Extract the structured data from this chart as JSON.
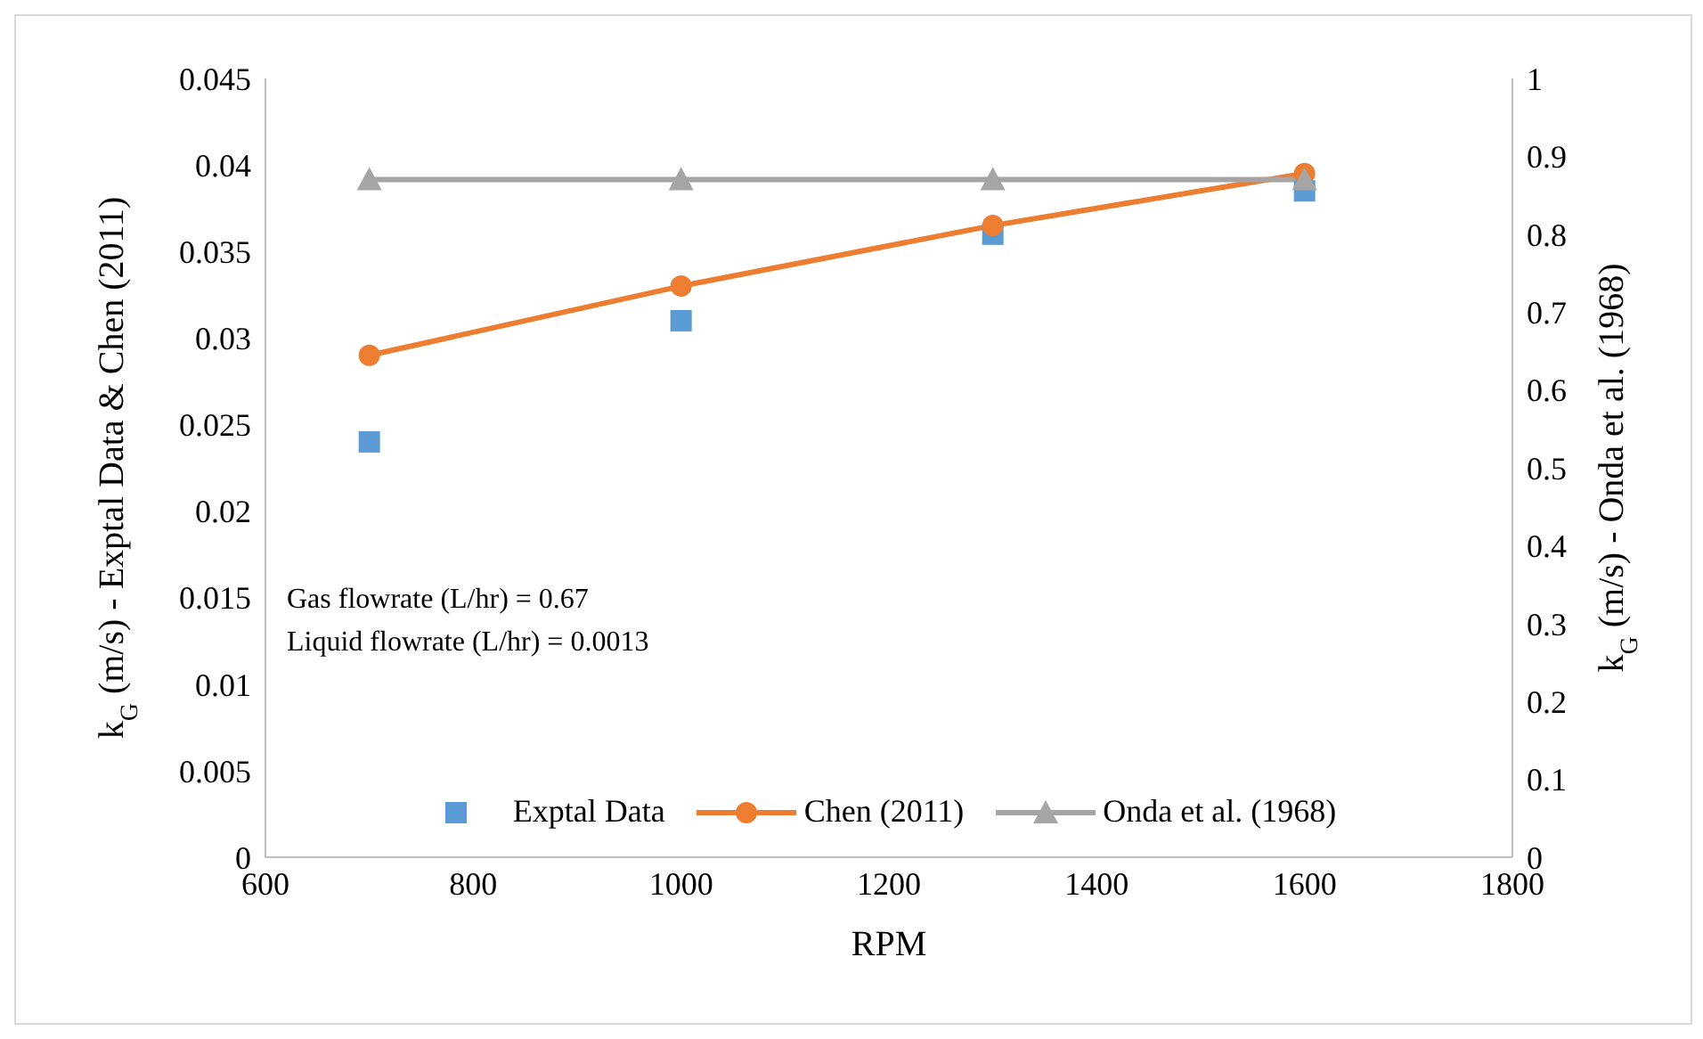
{
  "chart_data": {
    "type": "line",
    "xlabel": "RPM",
    "ylabel": "k$_{G}$ (m/s) - Exptal Data & Chen (2011)",
    "y2label": "k$_{G}$ (m/s) - Onda et al. (1968)",
    "x": [
      700,
      1000,
      1300,
      1600
    ],
    "series": [
      {
        "name": "Exptal Data",
        "type": "scatter",
        "marker": "square",
        "color": "#5b9bd5",
        "values": [
          0.024,
          0.031,
          0.036,
          0.0385
        ]
      },
      {
        "name": "Chen (2011)",
        "marker": "circle",
        "color": "#ed7d31",
        "values": [
          0.029,
          0.033,
          0.0365,
          0.0395
        ]
      },
      {
        "name": "Onda et al. (1968)",
        "marker": "triangle",
        "axis": "y2",
        "color": "#a5a5a5",
        "values": [
          0.87,
          0.87,
          0.87,
          0.87
        ]
      }
    ],
    "xlim": [
      600,
      1800
    ],
    "xticks": [
      600,
      800,
      1000,
      1200,
      1400,
      1600,
      1800
    ],
    "ylim": [
      0,
      0.045
    ],
    "yticks": [
      0,
      0.005,
      0.01,
      0.015,
      0.02,
      0.025,
      0.03,
      0.035,
      0.04,
      0.045
    ],
    "y2lim": [
      0,
      1
    ],
    "y2ticks": [
      0,
      0.1,
      0.2,
      0.3,
      0.4,
      0.5,
      0.6,
      0.7,
      0.8,
      0.9,
      1
    ],
    "annotations": [
      "Gas flowrate (L/hr) = 0.67",
      "Liquid flowrate (L/hr) = 0.0013"
    ],
    "legend": "bottom",
    "grid": false
  }
}
